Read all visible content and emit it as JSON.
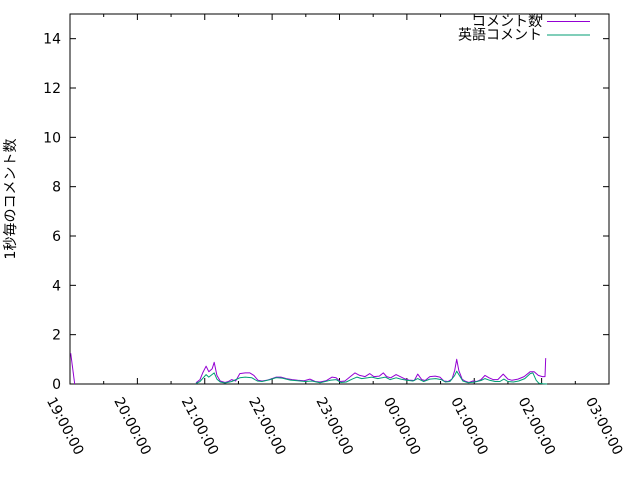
{
  "chart_data": {
    "type": "line",
    "title": "",
    "xlabel": "",
    "ylabel": "1秒毎のコメント数",
    "grid": false,
    "legend_position": "top-right-inside",
    "ylim": [
      0,
      15
    ],
    "y_ticks": [
      0,
      2,
      4,
      6,
      8,
      10,
      12,
      14
    ],
    "x_tick_labels": [
      "19:00:00",
      "20:00:00",
      "21:00:00",
      "22:00:00",
      "23:00:00",
      "00:00:00",
      "01:00:00",
      "02:00:00",
      "03:00:00"
    ],
    "x_minor_tick_interval": "30min",
    "x_unit": "hours_since_first_tick",
    "xlim": [
      0,
      8
    ],
    "series": [
      {
        "name": "コメント数",
        "key": "comments",
        "color": "#9400d3",
        "segments": [
          [
            [
              0.01,
              1.25
            ],
            [
              0.07,
              0
            ]
          ],
          [
            [
              1.87,
              0.05
            ],
            [
              1.93,
              0.18
            ],
            [
              1.97,
              0.45
            ],
            [
              2.02,
              0.72
            ],
            [
              2.06,
              0.5
            ],
            [
              2.11,
              0.62
            ],
            [
              2.14,
              0.88
            ],
            [
              2.18,
              0.35
            ],
            [
              2.23,
              0.12
            ],
            [
              2.3,
              0.06
            ],
            [
              2.35,
              0.1
            ],
            [
              2.4,
              0.18
            ],
            [
              2.46,
              0.12
            ],
            [
              2.52,
              0.42
            ],
            [
              2.6,
              0.45
            ],
            [
              2.67,
              0.45
            ],
            [
              2.73,
              0.35
            ],
            [
              2.79,
              0.15
            ],
            [
              2.85,
              0.12
            ],
            [
              2.92,
              0.15
            ],
            [
              3.0,
              0.22
            ],
            [
              3.06,
              0.28
            ],
            [
              3.13,
              0.28
            ],
            [
              3.21,
              0.22
            ],
            [
              3.3,
              0.18
            ],
            [
              3.38,
              0.15
            ],
            [
              3.47,
              0.13
            ],
            [
              3.56,
              0.2
            ],
            [
              3.64,
              0.1
            ],
            [
              3.71,
              0.08
            ],
            [
              3.8,
              0.13
            ],
            [
              3.89,
              0.28
            ],
            [
              3.95,
              0.25
            ],
            [
              4.01,
              0.1
            ],
            [
              4.08,
              0.12
            ],
            [
              4.16,
              0.3
            ],
            [
              4.23,
              0.45
            ],
            [
              4.3,
              0.35
            ],
            [
              4.38,
              0.3
            ],
            [
              4.45,
              0.42
            ],
            [
              4.51,
              0.3
            ],
            [
              4.59,
              0.32
            ],
            [
              4.65,
              0.45
            ],
            [
              4.7,
              0.3
            ],
            [
              4.76,
              0.25
            ],
            [
              4.84,
              0.38
            ],
            [
              4.9,
              0.3
            ],
            [
              4.96,
              0.22
            ],
            [
              5.03,
              0.16
            ],
            [
              5.11,
              0.14
            ],
            [
              5.16,
              0.4
            ],
            [
              5.22,
              0.18
            ],
            [
              5.27,
              0.14
            ],
            [
              5.34,
              0.3
            ],
            [
              5.42,
              0.32
            ],
            [
              5.49,
              0.28
            ],
            [
              5.55,
              0.12
            ],
            [
              5.61,
              0.1
            ],
            [
              5.67,
              0.2
            ],
            [
              5.71,
              0.55
            ],
            [
              5.74,
              1.0
            ],
            [
              5.77,
              0.55
            ],
            [
              5.82,
              0.2
            ],
            [
              5.86,
              0.12
            ],
            [
              5.92,
              0.06
            ],
            [
              5.98,
              0.12
            ],
            [
              6.04,
              0.1
            ],
            [
              6.1,
              0.18
            ],
            [
              6.16,
              0.35
            ],
            [
              6.22,
              0.25
            ],
            [
              6.28,
              0.18
            ],
            [
              6.35,
              0.18
            ],
            [
              6.43,
              0.4
            ],
            [
              6.5,
              0.2
            ],
            [
              6.56,
              0.15
            ],
            [
              6.65,
              0.2
            ],
            [
              6.74,
              0.3
            ],
            [
              6.83,
              0.5
            ],
            [
              6.89,
              0.5
            ],
            [
              6.95,
              0.35
            ],
            [
              7.01,
              0.3
            ],
            [
              7.05,
              0.3
            ],
            [
              7.06,
              1.05
            ]
          ]
        ]
      },
      {
        "name": "英語コメント",
        "key": "english-comments",
        "color": "#009e73",
        "segments": [
          [
            [
              1.87,
              0.02
            ],
            [
              1.93,
              0.1
            ],
            [
              2.02,
              0.38
            ],
            [
              2.06,
              0.28
            ],
            [
              2.14,
              0.45
            ],
            [
              2.18,
              0.2
            ],
            [
              2.23,
              0.08
            ],
            [
              2.3,
              0.04
            ],
            [
              2.4,
              0.1
            ],
            [
              2.52,
              0.25
            ],
            [
              2.6,
              0.28
            ],
            [
              2.7,
              0.25
            ],
            [
              2.78,
              0.12
            ],
            [
              2.85,
              0.1
            ],
            [
              2.97,
              0.18
            ],
            [
              3.06,
              0.26
            ],
            [
              3.15,
              0.24
            ],
            [
              3.27,
              0.16
            ],
            [
              3.38,
              0.13
            ],
            [
              3.49,
              0.1
            ],
            [
              3.59,
              0.12
            ],
            [
              3.71,
              0.05
            ],
            [
              3.86,
              0.15
            ],
            [
              3.95,
              0.18
            ],
            [
              4.02,
              0.06
            ],
            [
              4.1,
              0.08
            ],
            [
              4.19,
              0.2
            ],
            [
              4.26,
              0.28
            ],
            [
              4.33,
              0.22
            ],
            [
              4.42,
              0.25
            ],
            [
              4.48,
              0.28
            ],
            [
              4.57,
              0.22
            ],
            [
              4.68,
              0.28
            ],
            [
              4.75,
              0.18
            ],
            [
              4.84,
              0.25
            ],
            [
              4.91,
              0.2
            ],
            [
              5.0,
              0.15
            ],
            [
              5.09,
              0.12
            ],
            [
              5.16,
              0.22
            ],
            [
              5.25,
              0.1
            ],
            [
              5.34,
              0.2
            ],
            [
              5.43,
              0.22
            ],
            [
              5.51,
              0.18
            ],
            [
              5.57,
              0.08
            ],
            [
              5.64,
              0.1
            ],
            [
              5.71,
              0.35
            ],
            [
              5.74,
              0.52
            ],
            [
              5.79,
              0.3
            ],
            [
              5.83,
              0.12
            ],
            [
              5.91,
              0.05
            ],
            [
              6.01,
              0.08
            ],
            [
              6.1,
              0.14
            ],
            [
              6.16,
              0.22
            ],
            [
              6.23,
              0.15
            ],
            [
              6.31,
              0.1
            ],
            [
              6.38,
              0.1
            ],
            [
              6.44,
              0.2
            ],
            [
              6.5,
              0.1
            ],
            [
              6.58,
              0.08
            ],
            [
              6.66,
              0.12
            ],
            [
              6.75,
              0.22
            ],
            [
              6.83,
              0.42
            ],
            [
              6.87,
              0.45
            ],
            [
              6.92,
              0.15
            ],
            [
              6.96,
              0.03
            ],
            [
              7.02,
              0.01
            ],
            [
              7.08,
              0.0
            ]
          ]
        ]
      }
    ]
  }
}
